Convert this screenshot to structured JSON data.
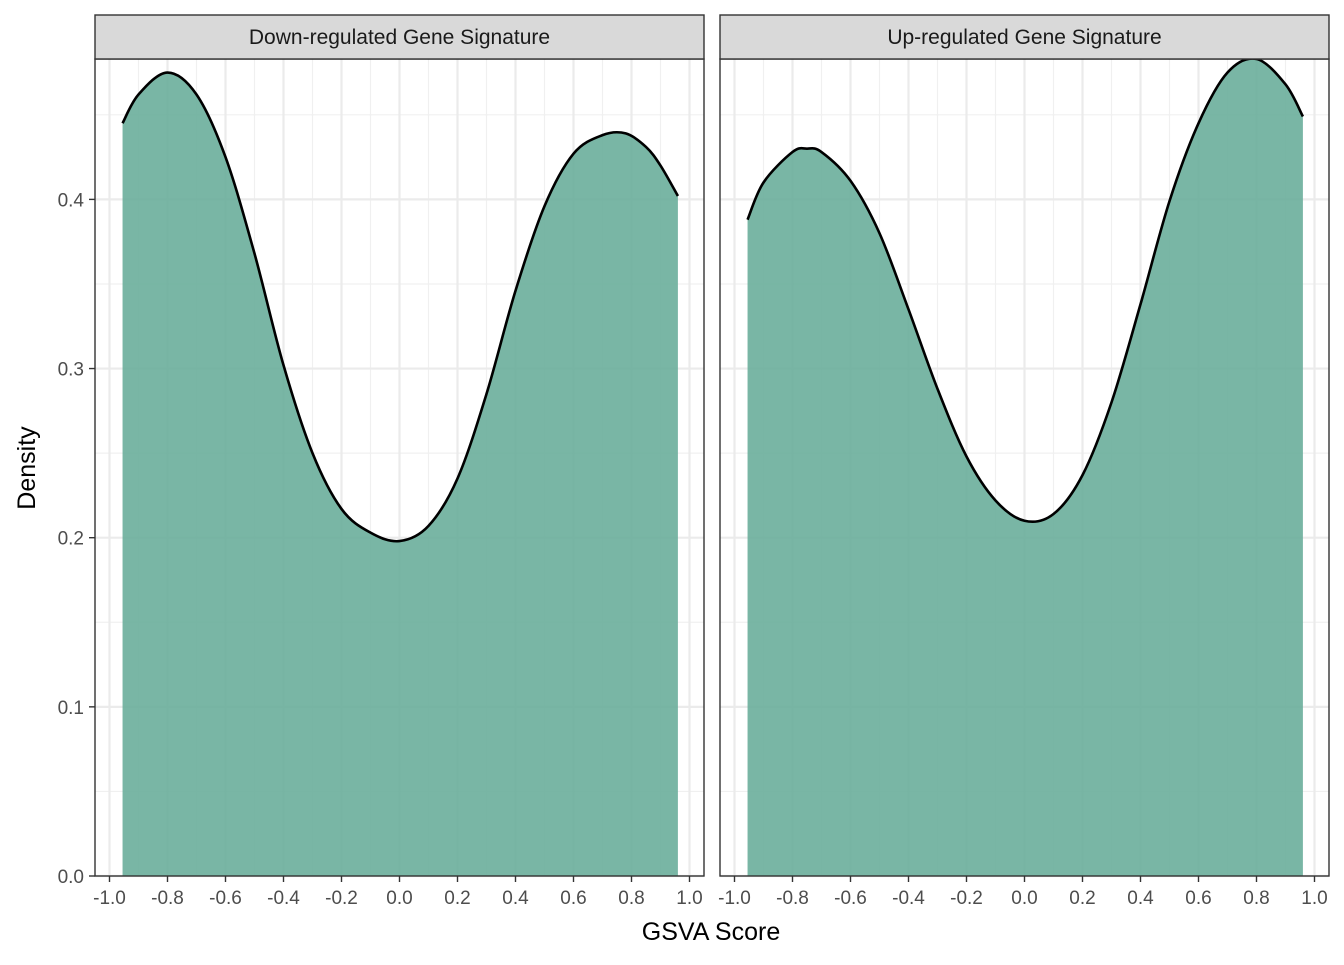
{
  "chart_data": {
    "type": "area",
    "xlabel": "GSVA Score",
    "ylabel": "Density",
    "xlim": [
      -1.05,
      1.05
    ],
    "ylim": [
      0,
      0.483
    ],
    "x_ticks": [
      -1.0,
      -0.8,
      -0.6,
      -0.4,
      -0.2,
      0.0,
      0.2,
      0.4,
      0.6,
      0.8,
      1.0
    ],
    "x_tick_labels": [
      "-1.0",
      "-0.8",
      "-0.6",
      "-0.4",
      "-0.2",
      "0.0",
      "0.2",
      "0.4",
      "0.6",
      "0.8",
      "1.0"
    ],
    "y_ticks": [
      0.0,
      0.1,
      0.2,
      0.3,
      0.4
    ],
    "y_tick_labels": [
      "0.0",
      "0.1",
      "0.2",
      "0.3",
      "0.4"
    ],
    "grid": true,
    "fill_color": "#66AC98",
    "line_color": "#000000",
    "strip_fill": "#D9D9D9",
    "panels": [
      {
        "title": "Down-regulated Gene Signature",
        "x": [
          -0.955,
          -0.9,
          -0.8,
          -0.7,
          -0.6,
          -0.5,
          -0.4,
          -0.3,
          -0.2,
          -0.1,
          0.0,
          0.1,
          0.2,
          0.3,
          0.4,
          0.5,
          0.6,
          0.7,
          0.78,
          0.85,
          0.9,
          0.96
        ],
        "y": [
          0.445,
          0.462,
          0.475,
          0.462,
          0.425,
          0.368,
          0.302,
          0.25,
          0.217,
          0.203,
          0.198,
          0.207,
          0.235,
          0.285,
          0.346,
          0.396,
          0.427,
          0.438,
          0.439,
          0.431,
          0.42,
          0.402
        ]
      },
      {
        "title": "Up-regulated Gene Signature",
        "x": [
          -0.955,
          -0.9,
          -0.8,
          -0.75,
          -0.7,
          -0.6,
          -0.5,
          -0.4,
          -0.3,
          -0.2,
          -0.1,
          0.0,
          0.1,
          0.2,
          0.3,
          0.4,
          0.5,
          0.6,
          0.7,
          0.8,
          0.9,
          0.96
        ],
        "y": [
          0.388,
          0.41,
          0.428,
          0.43,
          0.428,
          0.411,
          0.38,
          0.335,
          0.288,
          0.248,
          0.222,
          0.21,
          0.214,
          0.237,
          0.28,
          0.338,
          0.399,
          0.445,
          0.475,
          0.483,
          0.468,
          0.449
        ]
      }
    ]
  }
}
